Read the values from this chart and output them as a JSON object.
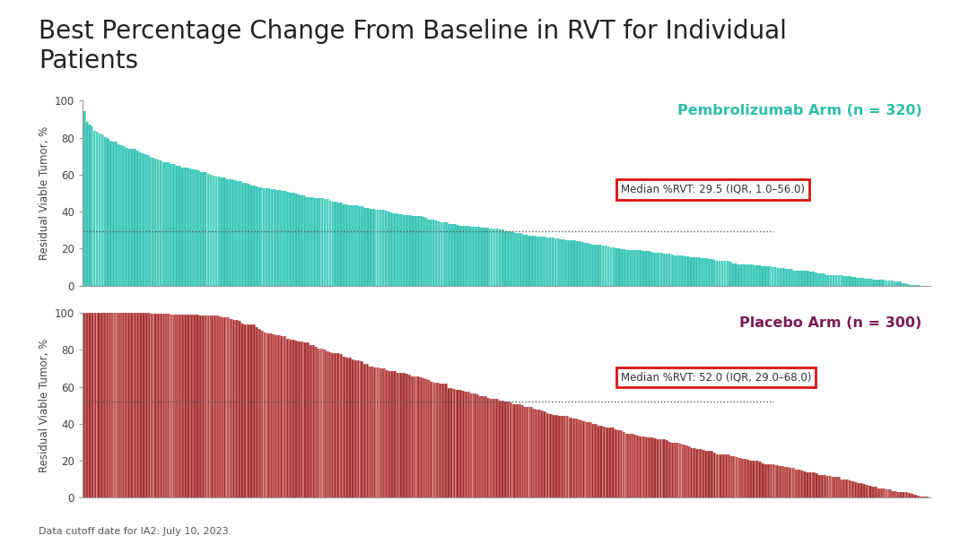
{
  "title": "Best Percentage Change From Baseline in RVT for Individual\nPatients",
  "title_color": "#222222",
  "title_fontsize": 20,
  "teal_color": "#3CBFB0",
  "red_color": "#9B3030",
  "red_hatch_color": "#CC6666",
  "background_color": "#FFFFFF",
  "separator_color": "#2E8B7A",
  "pembro_label": "Pembrolizumab Arm (n = 320)",
  "pembro_label_color": "#2BBFAA",
  "placebo_label": "Placebo Arm (n = 300)",
  "placebo_label_color": "#7B1A55",
  "pembro_n": 320,
  "placebo_n": 300,
  "pembro_median": 29.5,
  "placebo_median": 52.0,
  "pembro_annotation": "Median %RVT: 29.5 (IQR, 1.0–56.0)",
  "placebo_annotation": "Median %RVT: 52.0 (IQR, 29.0–68.0)",
  "ylabel": "Residual Viable Tumor, %",
  "ylim": [
    0,
    100
  ],
  "yticks": [
    0,
    20,
    40,
    60,
    80,
    100
  ],
  "footer": "Data cutoff date for IA2: July 10, 2023.",
  "annotation_box_color": "#FFFFFF",
  "annotation_border_color": "#DD1111",
  "annotation_text_color": "#333333"
}
